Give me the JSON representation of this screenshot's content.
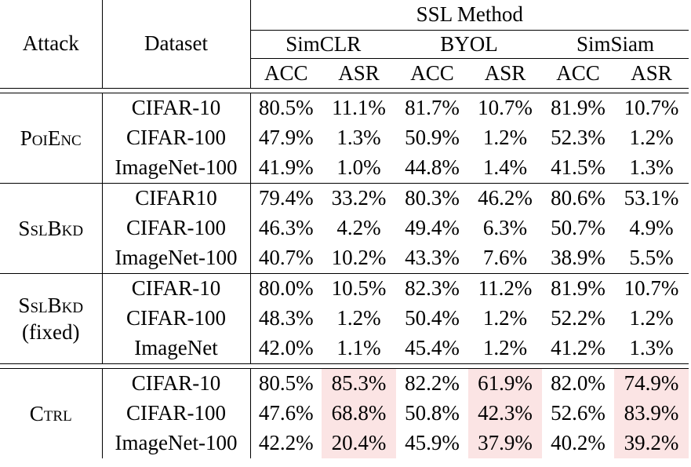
{
  "header": {
    "attack": "Attack",
    "dataset": "Dataset",
    "ssl_method": "SSL Method",
    "methods": [
      "SimCLR",
      "BYOL",
      "SimSiam"
    ],
    "metrics": [
      "ACC",
      "ASR",
      "ACC",
      "ASR",
      "ACC",
      "ASR"
    ]
  },
  "groups": [
    {
      "attack_line1": "PoiEnc",
      "attack_line2": "",
      "rows": [
        {
          "dataset": "CIFAR-10",
          "values": [
            "80.5%",
            "11.1%",
            "81.7%",
            "10.7%",
            "81.9%",
            "10.7%"
          ]
        },
        {
          "dataset": "CIFAR-100",
          "values": [
            "47.9%",
            "1.3%",
            "50.9%",
            "1.2%",
            "52.3%",
            "1.2%"
          ]
        },
        {
          "dataset": "ImageNet-100",
          "values": [
            "41.9%",
            "1.0%",
            "44.8%",
            "1.4%",
            "41.5%",
            "1.3%"
          ]
        }
      ]
    },
    {
      "attack_line1": "SslBkd",
      "attack_line2": "",
      "rows": [
        {
          "dataset": "CIFAR10",
          "values": [
            "79.4%",
            "33.2%",
            "80.3%",
            "46.2%",
            "80.6%",
            "53.1%"
          ]
        },
        {
          "dataset": "CIFAR-100",
          "values": [
            "46.3%",
            "4.2%",
            "49.4%",
            "6.3%",
            "50.7%",
            "4.9%"
          ]
        },
        {
          "dataset": "ImageNet-100",
          "values": [
            "40.7%",
            "10.2%",
            "43.3%",
            "7.6%",
            "38.9%",
            "5.5%"
          ]
        }
      ]
    },
    {
      "attack_line1": "SslBkd",
      "attack_line2": "(fixed)",
      "rows": [
        {
          "dataset": "CIFAR-10",
          "values": [
            "80.0%",
            "10.5%",
            "82.3%",
            "11.2%",
            "81.9%",
            "10.7%"
          ]
        },
        {
          "dataset": "CIFAR-100",
          "values": [
            "48.3%",
            "1.2%",
            "50.4%",
            "1.2%",
            "52.2%",
            "1.2%"
          ]
        },
        {
          "dataset": "ImageNet",
          "values": [
            "42.0%",
            "1.1%",
            "45.4%",
            "1.2%",
            "41.2%",
            "1.3%"
          ]
        }
      ]
    },
    {
      "attack_line1": "Ctrl",
      "attack_line2": "",
      "rows": [
        {
          "dataset": "CIFAR-10",
          "values": [
            "80.5%",
            "85.3%",
            "82.2%",
            "61.9%",
            "82.0%",
            "74.9%"
          ]
        },
        {
          "dataset": "CIFAR-100",
          "values": [
            "47.6%",
            "68.8%",
            "50.8%",
            "42.3%",
            "52.6%",
            "83.9%"
          ]
        },
        {
          "dataset": "ImageNet-100",
          "values": [
            "42.2%",
            "20.4%",
            "45.9%",
            "37.9%",
            "40.2%",
            "39.2%"
          ]
        }
      ]
    }
  ],
  "highlight_color": "#fbe4e4"
}
